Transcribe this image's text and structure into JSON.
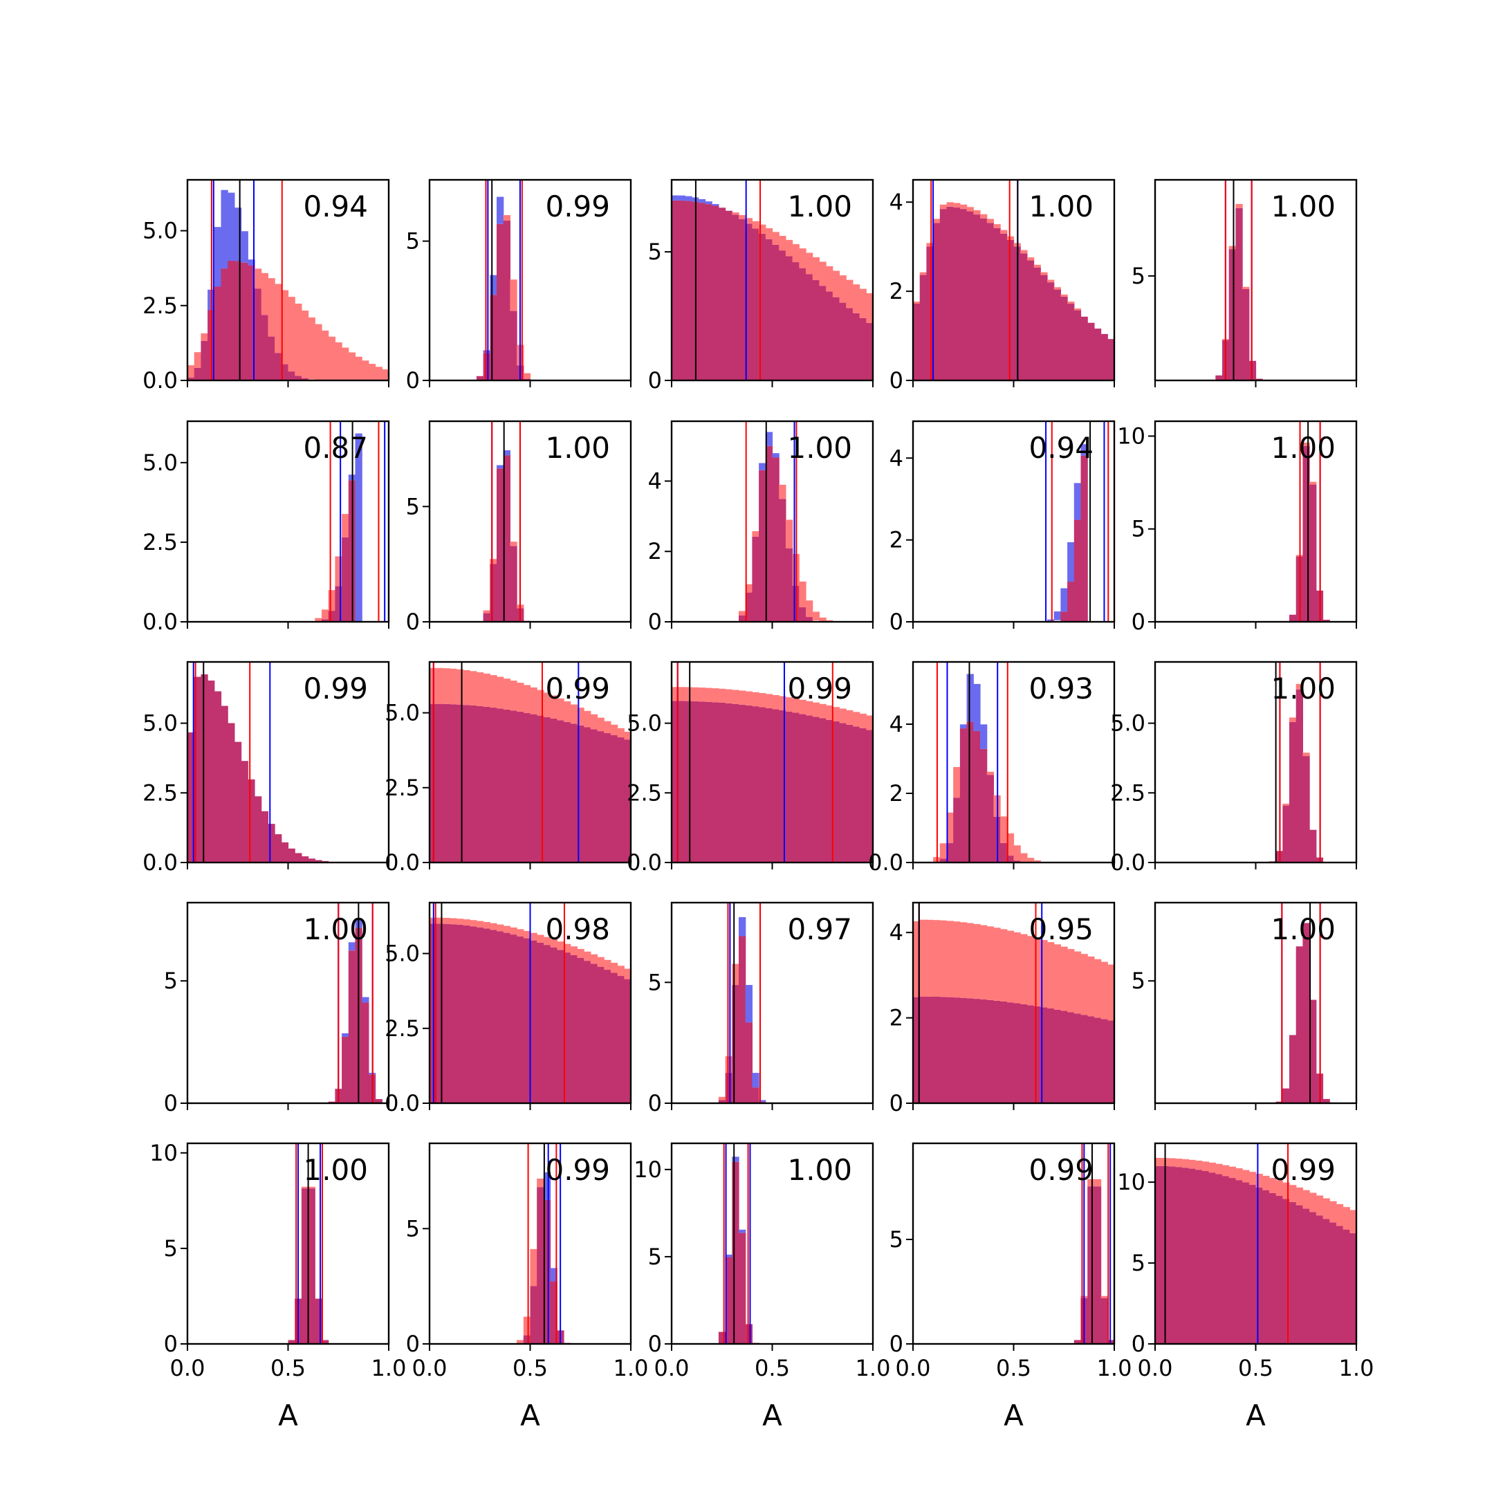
{
  "chart_data": {
    "type": "histogram-grid",
    "rows": 5,
    "cols": 5,
    "xlim": [
      0,
      1
    ],
    "xticks": [
      "0.0",
      "0.5",
      "1.0"
    ],
    "xlabel": "A",
    "colors": {
      "series_a": "#6b6bf0",
      "series_b": "#ff7b7b",
      "overlap": "#c0336e",
      "interval_a": "#0000ff",
      "interval_b": "#ff0000",
      "median": "#000000"
    },
    "panels": [
      {
        "label": "0.94",
        "ymax": 6.7,
        "yticks": [
          "0.0",
          "2.5",
          "5.0"
        ],
        "ytick_values": [
          0,
          2.5,
          5.0
        ],
        "dist_a": {
          "mean": 0.19,
          "sd": 0.06,
          "skew": 1.2,
          "peak": 6.4
        },
        "dist_b": {
          "mean": 0.22,
          "sd": 0.1,
          "skew": 2.5,
          "peak": 4.0
        },
        "vlines_a": [
          0.13,
          0.33
        ],
        "vlines_b": [
          0.12,
          0.47
        ],
        "median": 0.26
      },
      {
        "label": "0.99",
        "ymax": 7.2,
        "yticks": [
          "0",
          "5"
        ],
        "ytick_values": [
          0,
          5
        ],
        "dist_a": {
          "mean": 0.36,
          "sd": 0.04,
          "skew": 0,
          "peak": 6.8
        },
        "dist_b": {
          "mean": 0.37,
          "sd": 0.045,
          "skew": 0,
          "peak": 6.2
        },
        "vlines_a": [
          0.29,
          0.45
        ],
        "vlines_b": [
          0.28,
          0.46
        ],
        "median": 0.31
      },
      {
        "label": "1.00",
        "ymax": 7.8,
        "yticks": [
          "0",
          "5"
        ],
        "ytick_values": [
          0,
          5
        ],
        "dist_a": {
          "mean": 0.02,
          "sd": 0.09,
          "skew": 6,
          "peak": 7.2
        },
        "dist_b": {
          "mean": 0.02,
          "sd": 0.1,
          "skew": 7,
          "peak": 7.0
        },
        "vlines_a": [
          0.37
        ],
        "vlines_b": [
          0.44
        ],
        "median": 0.12
      },
      {
        "label": "1.00",
        "ymax": 4.5,
        "yticks": [
          "0",
          "2",
          "4"
        ],
        "ytick_values": [
          0,
          2,
          4
        ],
        "dist_a": {
          "mean": 0.17,
          "sd": 0.12,
          "skew": 3,
          "peak": 3.9
        },
        "dist_b": {
          "mean": 0.17,
          "sd": 0.12,
          "skew": 3,
          "peak": 4.0
        },
        "vlines_a": [
          0.1,
          0.52
        ],
        "vlines_b": [
          0.09,
          0.48
        ],
        "median": 0.52
      },
      {
        "label": "1.00",
        "ymax": 9.6,
        "yticks": [
          "5"
        ],
        "ytick_values": [
          5
        ],
        "dist_a": {
          "mean": 0.41,
          "sd": 0.035,
          "skew": 0,
          "peak": 8.4
        },
        "dist_b": {
          "mean": 0.41,
          "sd": 0.035,
          "skew": 0,
          "peak": 8.6
        },
        "vlines_a": [
          0.35,
          0.48
        ],
        "vlines_b": [
          0.35,
          0.48
        ],
        "median": 0.39
      },
      {
        "label": "0.87",
        "ymax": 6.3,
        "yticks": [
          "0.0",
          "2.5",
          "5.0"
        ],
        "ytick_values": [
          0,
          2.5,
          5.0
        ],
        "dist_a": {
          "mean": 0.86,
          "sd": 0.06,
          "skew": -1,
          "peak": 6.0
        },
        "dist_b": {
          "mean": 0.84,
          "sd": 0.07,
          "skew": -1,
          "peak": 4.7
        },
        "vlines_a": [
          0.76,
          0.98
        ],
        "vlines_b": [
          0.71,
          0.95
        ],
        "median": 0.82
      },
      {
        "label": "1.00",
        "ymax": 8.7,
        "yticks": [
          "0",
          "5"
        ],
        "ytick_values": [
          0,
          5
        ],
        "dist_a": {
          "mean": 0.37,
          "sd": 0.035,
          "skew": 0,
          "peak": 8.0
        },
        "dist_b": {
          "mean": 0.37,
          "sd": 0.037,
          "skew": 0,
          "peak": 7.7
        },
        "vlines_a": [
          0.31,
          0.45
        ],
        "vlines_b": [
          0.31,
          0.45
        ],
        "median": 0.37
      },
      {
        "label": "1.00",
        "ymax": 5.7,
        "yticks": [
          "0",
          "2",
          "4"
        ],
        "ytick_values": [
          0,
          2,
          4
        ],
        "dist_a": {
          "mean": 0.48,
          "sd": 0.05,
          "skew": 0.5,
          "peak": 5.4
        },
        "dist_b": {
          "mean": 0.48,
          "sd": 0.055,
          "skew": 0.8,
          "peak": 5.0
        },
        "vlines_a": [
          0.61
        ],
        "vlines_b": [
          0.37,
          0.62
        ],
        "median": 0.47
      },
      {
        "label": "0.94",
        "ymax": 4.9,
        "yticks": [
          "0",
          "2",
          "4"
        ],
        "ytick_values": [
          0,
          2,
          4
        ],
        "dist_a": {
          "mean": 0.86,
          "sd": 0.06,
          "skew": -1,
          "peak": 4.4
        },
        "dist_b": {
          "mean": 0.87,
          "sd": 0.05,
          "skew": -1,
          "peak": 4.4
        },
        "vlines_a": [
          0.66,
          0.95
        ],
        "vlines_b": [
          0.69,
          0.97
        ],
        "median": 0.88
      },
      {
        "label": "1.00",
        "ymax": 10.8,
        "yticks": [
          "0",
          "5",
          "10"
        ],
        "ytick_values": [
          0,
          5,
          10
        ],
        "dist_a": {
          "mean": 0.76,
          "sd": 0.03,
          "skew": 0,
          "peak": 10.0
        },
        "dist_b": {
          "mean": 0.76,
          "sd": 0.03,
          "skew": 0,
          "peak": 10.2
        },
        "vlines_a": [
          0.72,
          0.82
        ],
        "vlines_b": [
          0.72,
          0.82
        ],
        "median": 0.76
      },
      {
        "label": "0.99",
        "ymax": 7.2,
        "yticks": [
          "0.0",
          "2.5",
          "5.0"
        ],
        "ytick_values": [
          0,
          2.5,
          5.0
        ],
        "dist_a": {
          "mean": 0.06,
          "sd": 0.05,
          "skew": 3,
          "peak": 6.8
        },
        "dist_b": {
          "mean": 0.06,
          "sd": 0.05,
          "skew": 3,
          "peak": 6.8
        },
        "vlines_a": [
          0.03,
          0.41
        ],
        "vlines_b": [
          0.04,
          0.31
        ],
        "median": 0.08
      },
      {
        "label": "0.99",
        "ymax": 6.7,
        "yticks": [
          "0.0",
          "2.5",
          "5.0"
        ],
        "ytick_values": [
          0,
          2.5,
          5.0
        ],
        "dist_a": {
          "mean": 0.02,
          "sd": 0.15,
          "skew": 8,
          "peak": 5.3
        },
        "dist_b": {
          "mean": 0.02,
          "sd": 0.12,
          "skew": 8,
          "peak": 6.5
        },
        "vlines_a": [
          0.02,
          0.74
        ],
        "vlines_b": [
          0.02,
          0.56
        ],
        "median": 0.16
      },
      {
        "label": "0.99",
        "ymax": 7.2,
        "yticks": [
          "0.0",
          "2.5",
          "5.0"
        ],
        "ytick_values": [
          0,
          2.5,
          5.0
        ],
        "dist_a": {
          "mean": 0.02,
          "sd": 0.17,
          "skew": 8,
          "peak": 5.8
        },
        "dist_b": {
          "mean": 0.02,
          "sd": 0.18,
          "skew": 8,
          "peak": 6.3
        },
        "vlines_a": [
          0.03,
          0.56
        ],
        "vlines_b": [
          0.03,
          0.8
        ],
        "median": 0.09
      },
      {
        "label": "0.93",
        "ymax": 5.8,
        "yticks": [
          "0.0",
          "2",
          "4"
        ],
        "ytick_values": [
          0,
          2,
          4
        ],
        "dist_a": {
          "mean": 0.29,
          "sd": 0.05,
          "skew": 0.5,
          "peak": 5.5
        },
        "dist_b": {
          "mean": 0.27,
          "sd": 0.06,
          "skew": 1,
          "peak": 4.1
        },
        "vlines_a": [
          0.17,
          0.42
        ],
        "vlines_b": [
          0.12,
          0.47
        ],
        "median": 0.28
      },
      {
        "label": "1.00",
        "ymax": 7.2,
        "yticks": [
          "0.0",
          "2.5",
          "5.0"
        ],
        "ytick_values": [
          0,
          2.5,
          5.0
        ],
        "dist_a": {
          "mean": 0.71,
          "sd": 0.04,
          "skew": 0,
          "peak": 6.3
        },
        "dist_b": {
          "mean": 0.71,
          "sd": 0.04,
          "skew": 0,
          "peak": 6.5
        },
        "vlines_a": [
          0.62,
          0.82
        ],
        "vlines_b": [
          0.62,
          0.82
        ],
        "median": 0.6
      },
      {
        "label": "1.00",
        "ymax": 8.2,
        "yticks": [
          "0",
          "5"
        ],
        "ytick_values": [
          0,
          5
        ],
        "dist_a": {
          "mean": 0.84,
          "sd": 0.04,
          "skew": 0,
          "peak": 7.8
        },
        "dist_b": {
          "mean": 0.84,
          "sd": 0.04,
          "skew": 0,
          "peak": 7.4
        },
        "vlines_a": [
          0.75,
          0.92
        ],
        "vlines_b": [
          0.75,
          0.92
        ],
        "median": 0.85
      },
      {
        "label": "0.98",
        "ymax": 6.7,
        "yticks": [
          "0.0",
          "2.5",
          "5.0"
        ],
        "ytick_values": [
          0,
          2.5,
          5.0
        ],
        "dist_a": {
          "mean": 0.02,
          "sd": 0.14,
          "skew": 7,
          "peak": 6.0
        },
        "dist_b": {
          "mean": 0.02,
          "sd": 0.12,
          "skew": 9,
          "peak": 6.2
        },
        "vlines_a": [
          0.02,
          0.5
        ],
        "vlines_b": [
          0.03,
          0.67
        ],
        "median": 0.06
      },
      {
        "label": "0.97",
        "ymax": 8.3,
        "yticks": [
          "0",
          "5"
        ],
        "ytick_values": [
          0,
          5
        ],
        "dist_a": {
          "mean": 0.35,
          "sd": 0.035,
          "skew": 0,
          "peak": 7.7
        },
        "dist_b": {
          "mean": 0.34,
          "sd": 0.035,
          "skew": 0,
          "peak": 7.2
        },
        "vlines_a": [
          0.29,
          0.44
        ],
        "vlines_b": [
          0.28,
          0.44
        ],
        "median": 0.31
      },
      {
        "label": "0.95",
        "ymax": 4.7,
        "yticks": [
          "0",
          "2",
          "4"
        ],
        "ytick_values": [
          0,
          2,
          4
        ],
        "dist_a": {
          "mean": 0.04,
          "sd": 0.22,
          "skew": 5,
          "peak": 2.5
        },
        "dist_b": {
          "mean": 0.04,
          "sd": 0.18,
          "skew": 6,
          "peak": 4.3
        },
        "vlines_a": [
          0.03,
          0.64
        ],
        "vlines_b": [
          0.03,
          0.61
        ],
        "median": 0.03
      },
      {
        "label": "1.00",
        "ymax": 8.2,
        "yticks": [
          "5"
        ],
        "ytick_values": [
          5
        ],
        "dist_a": {
          "mean": 0.74,
          "sd": 0.04,
          "skew": 0,
          "peak": 7.6
        },
        "dist_b": {
          "mean": 0.74,
          "sd": 0.04,
          "skew": 0,
          "peak": 7.6
        },
        "vlines_a": [
          0.63,
          0.82
        ],
        "vlines_b": [
          0.63,
          0.82
        ],
        "median": 0.77
      },
      {
        "label": "1.00",
        "ymax": 10.5,
        "yticks": [
          "0",
          "5",
          "10"
        ],
        "ytick_values": [
          0,
          5,
          10
        ],
        "dist_a": {
          "mean": 0.6,
          "sd": 0.03,
          "skew": 0,
          "peak": 9.5
        },
        "dist_b": {
          "mean": 0.6,
          "sd": 0.03,
          "skew": 0,
          "peak": 9.6
        },
        "vlines_a": [
          0.55,
          0.66
        ],
        "vlines_b": [
          0.54,
          0.67
        ],
        "median": 0.6
      },
      {
        "label": "0.99",
        "ymax": 8.7,
        "yticks": [
          "0",
          "5"
        ],
        "ytick_values": [
          0,
          5
        ],
        "dist_a": {
          "mean": 0.57,
          "sd": 0.035,
          "skew": 0,
          "peak": 8.0
        },
        "dist_b": {
          "mean": 0.56,
          "sd": 0.04,
          "skew": 0,
          "peak": 7.4
        },
        "vlines_a": [
          0.59,
          0.65
        ],
        "vlines_b": [
          0.49,
          0.63
        ],
        "median": 0.57
      },
      {
        "label": "1.00",
        "ymax": 11.5,
        "yticks": [
          "0",
          "5",
          "10"
        ],
        "ytick_values": [
          0,
          5,
          10
        ],
        "dist_a": {
          "mean": 0.32,
          "sd": 0.03,
          "skew": 0,
          "peak": 10.8
        },
        "dist_b": {
          "mean": 0.32,
          "sd": 0.03,
          "skew": 0,
          "peak": 10.5
        },
        "vlines_a": [
          0.27,
          0.39
        ],
        "vlines_b": [
          0.26,
          0.38
        ],
        "median": 0.31
      },
      {
        "label": "0.99",
        "ymax": 9.6,
        "yticks": [
          "0",
          "5"
        ],
        "ytick_values": [
          0,
          5
        ],
        "dist_a": {
          "mean": 0.9,
          "sd": 0.03,
          "skew": 0,
          "peak": 8.8
        },
        "dist_b": {
          "mean": 0.9,
          "sd": 0.03,
          "skew": 0,
          "peak": 9.2
        },
        "vlines_a": [
          0.85,
          0.98
        ],
        "vlines_b": [
          0.84,
          0.97
        ],
        "median": 0.89
      },
      {
        "label": "0.99",
        "ymax": 12.4,
        "yticks": [
          "0",
          "5",
          "10"
        ],
        "ytick_values": [
          0,
          5,
          10
        ],
        "dist_a": {
          "mean": 0.01,
          "sd": 0.1,
          "skew": 9,
          "peak": 11.0
        },
        "dist_b": {
          "mean": 0.01,
          "sd": 0.12,
          "skew": 9,
          "peak": 11.5
        },
        "vlines_a": [
          0.51
        ],
        "vlines_b": [
          0.66
        ],
        "median": 0.05
      }
    ]
  }
}
